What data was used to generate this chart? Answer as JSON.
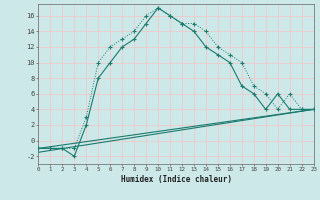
{
  "xlabel": "Humidex (Indice chaleur)",
  "background_color": "#cce8e8",
  "grid_color": "#f0c8c8",
  "line_color": "#1a7a6e",
  "series1": {
    "x": [
      0,
      1,
      2,
      3,
      4,
      5,
      6,
      7,
      8,
      9,
      10,
      11,
      12,
      13,
      14,
      15,
      16,
      17,
      18,
      19,
      20,
      21,
      22,
      23
    ],
    "y": [
      -1,
      -1,
      -1,
      -2,
      2,
      8,
      10,
      12,
      13,
      15,
      17,
      16,
      15,
      14,
      12,
      11,
      10,
      7,
      6,
      4,
      6,
      4,
      4,
      4
    ]
  },
  "series2": {
    "x": [
      0,
      1,
      2,
      3,
      4,
      5,
      6,
      7,
      8,
      9,
      10,
      11,
      12,
      13,
      14,
      15,
      16,
      17,
      18,
      19,
      20,
      21,
      22,
      23
    ],
    "y": [
      -1,
      -1,
      -1,
      -1,
      3,
      10,
      12,
      13,
      14,
      16,
      17,
      16,
      15,
      15,
      14,
      12,
      11,
      10,
      7,
      6,
      4,
      6,
      4,
      4
    ]
  },
  "series3": {
    "x": [
      0,
      23
    ],
    "y": [
      -1,
      4
    ]
  },
  "series4": {
    "x": [
      0,
      23
    ],
    "y": [
      -1.5,
      4
    ]
  },
  "ylim": [
    -3,
    17.5
  ],
  "xlim": [
    0,
    23
  ],
  "yticks": [
    -2,
    0,
    2,
    4,
    6,
    8,
    10,
    12,
    14,
    16
  ],
  "xticks": [
    0,
    1,
    2,
    3,
    4,
    5,
    6,
    7,
    8,
    9,
    10,
    11,
    12,
    13,
    14,
    15,
    16,
    17,
    18,
    19,
    20,
    21,
    22,
    23
  ]
}
